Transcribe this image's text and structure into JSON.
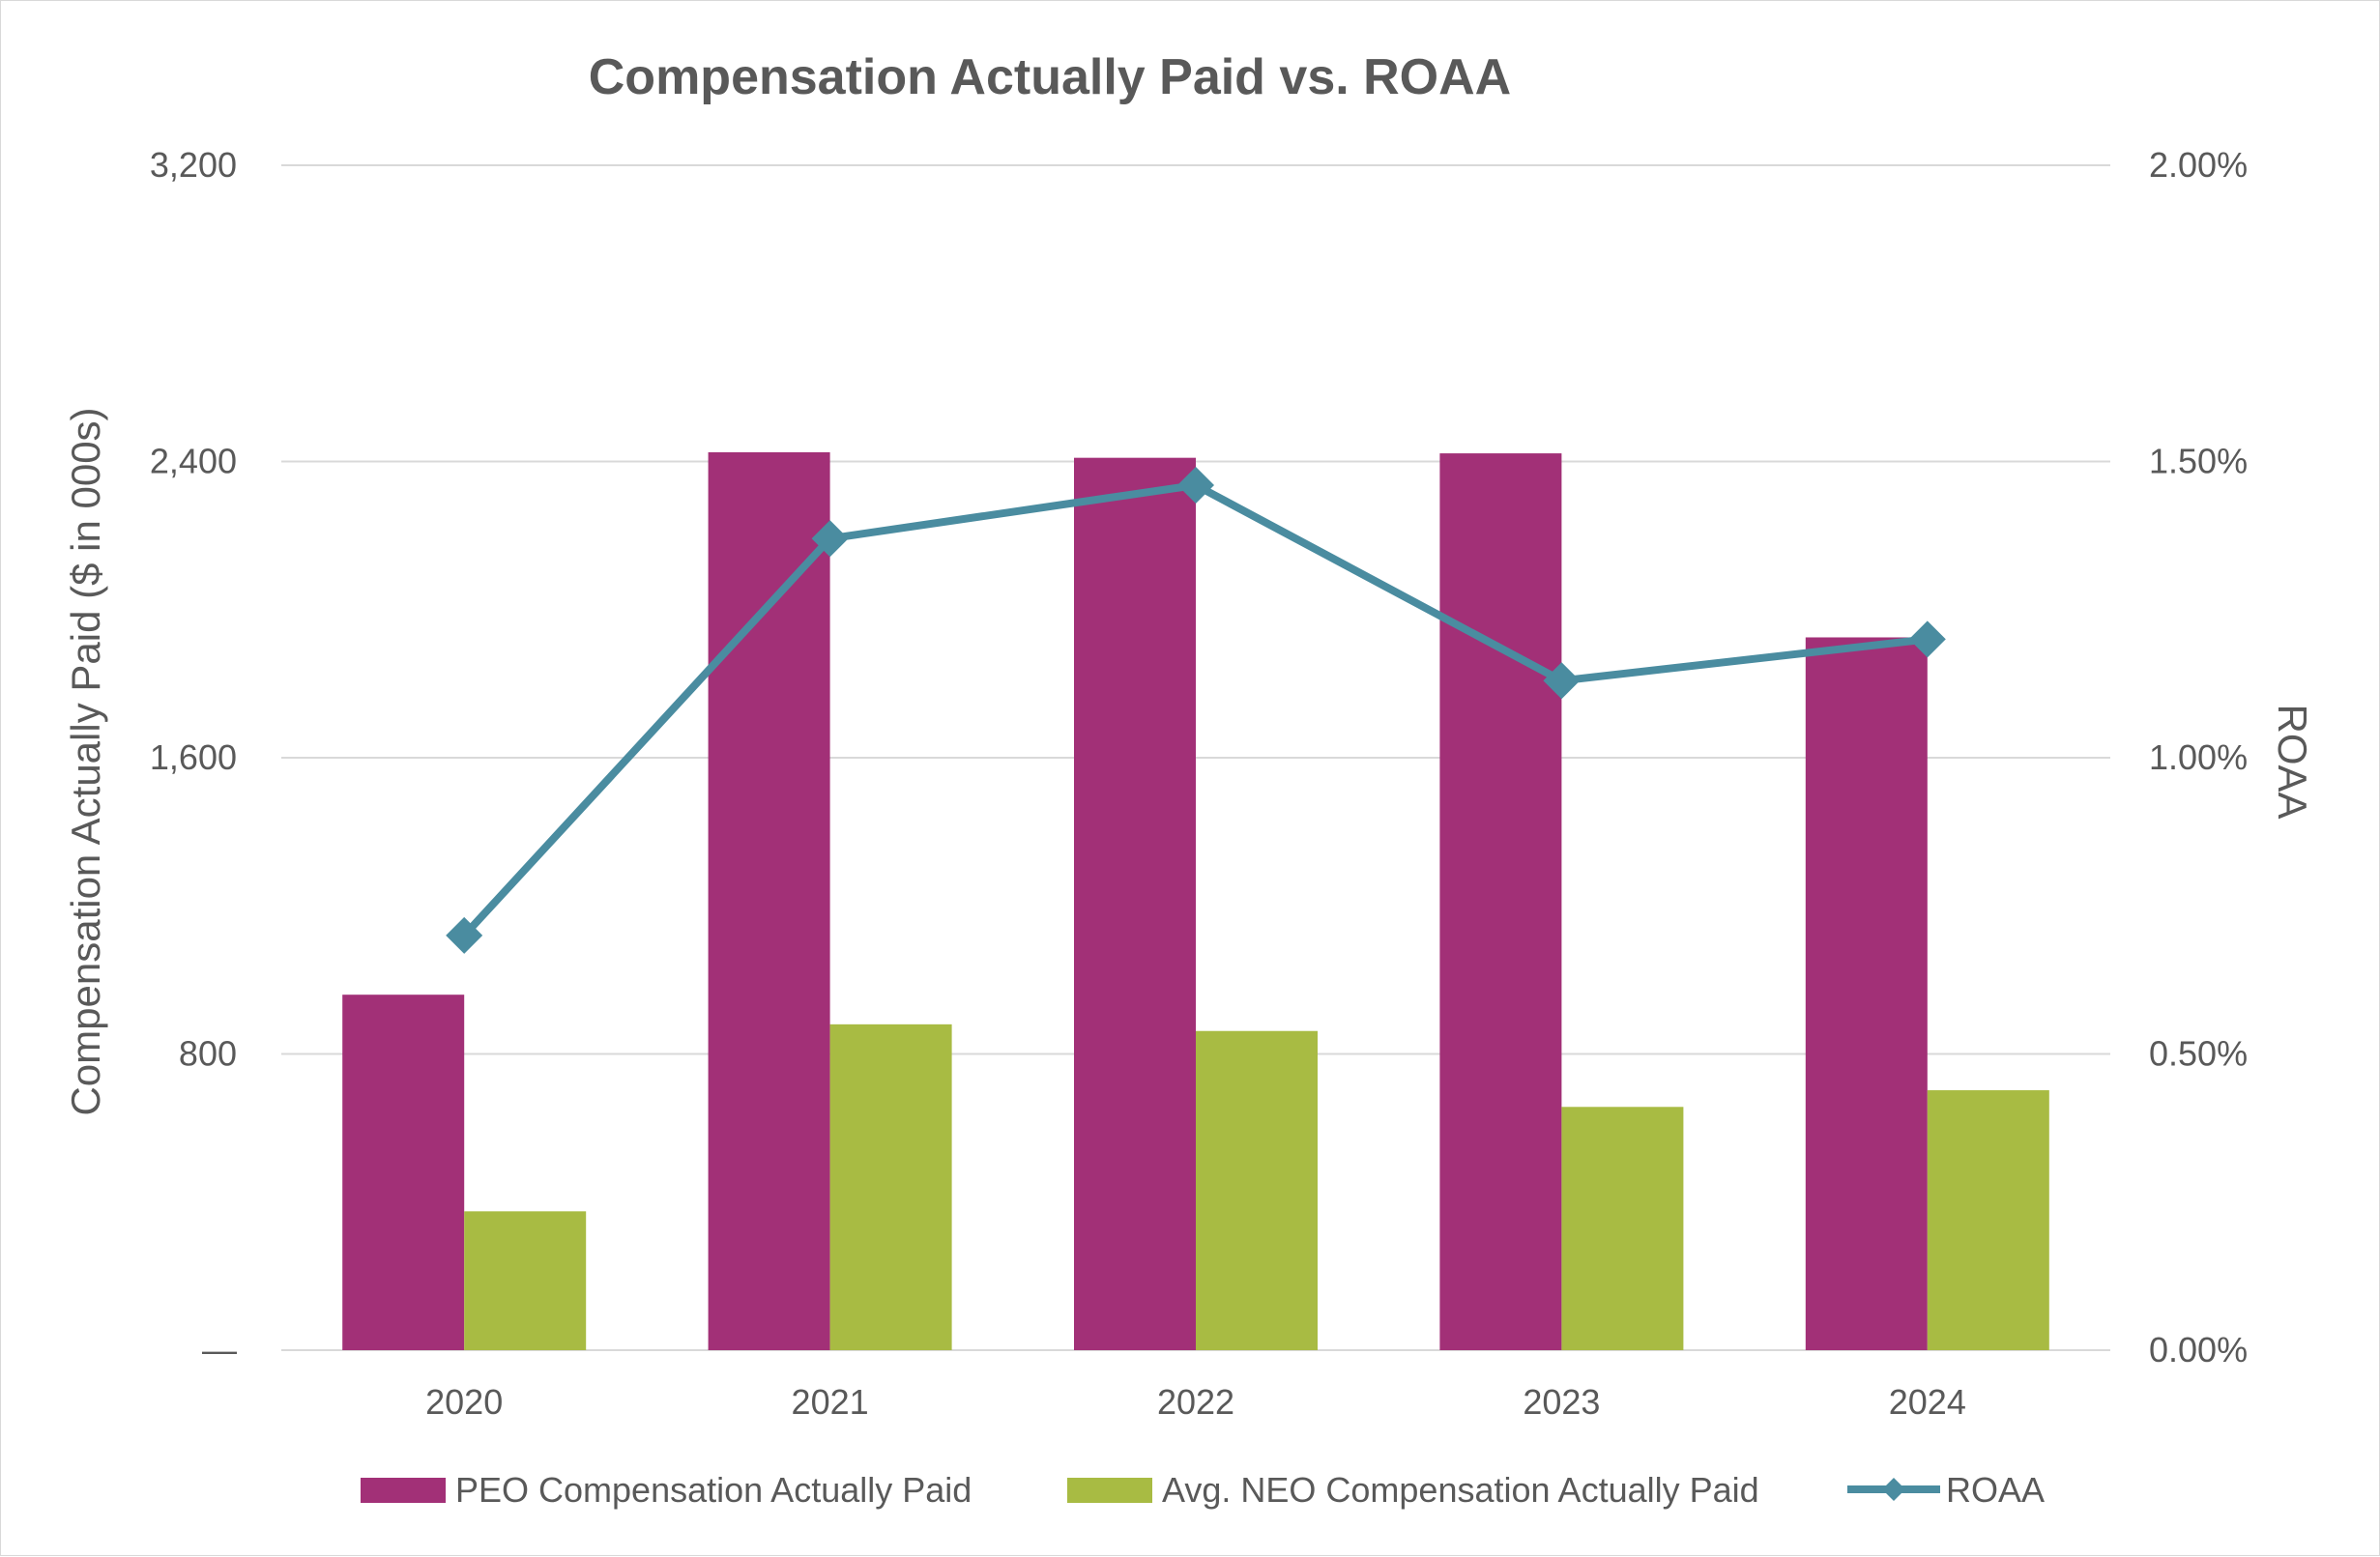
{
  "chart_data": {
    "type": "bar+line",
    "title": "Compensation Actually Paid vs. ROAA",
    "categories": [
      "2020",
      "2021",
      "2022",
      "2023",
      "2024"
    ],
    "series": [
      {
        "name": "PEO Compensation Actually Paid",
        "type": "bar",
        "axis": "left",
        "color": "#a23077",
        "values": [
          960,
          2425,
          2410,
          2422,
          1925
        ]
      },
      {
        "name": "Avg. NEO Compensation Actually Paid",
        "type": "bar",
        "axis": "left",
        "color": "#a8bb43",
        "values": [
          375,
          880,
          862,
          657,
          702
        ]
      },
      {
        "name": "ROAA",
        "type": "line",
        "axis": "right",
        "color": "#4a8ca0",
        "marker": "diamond",
        "values": [
          0.7,
          1.37,
          1.46,
          1.13,
          1.2
        ]
      }
    ],
    "y_left": {
      "label": "Compensation Actually Paid ($ in 000s)",
      "min": 0,
      "max": 3200,
      "ticks": [
        0,
        800,
        1600,
        2400,
        3200
      ],
      "tick_labels": [
        "—",
        "800",
        "1,600",
        "2,400",
        "3,200"
      ]
    },
    "y_right": {
      "label": "ROAA",
      "min": 0,
      "max": 2.0,
      "ticks": [
        0,
        0.5,
        1.0,
        1.5,
        2.0
      ],
      "tick_labels": [
        "0.00%",
        "0.50%",
        "1.00%",
        "1.50%",
        "2.00%"
      ]
    },
    "gridlines": true,
    "legend_position": "bottom"
  }
}
